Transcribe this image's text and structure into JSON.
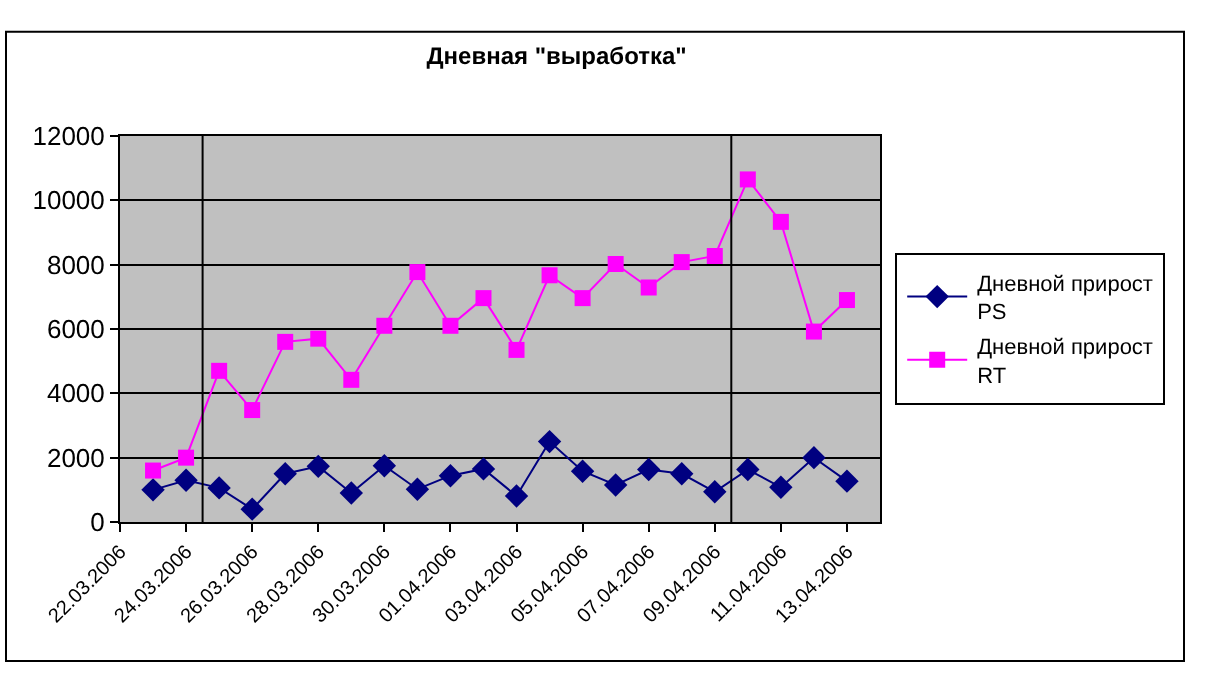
{
  "chart_data": {
    "type": "line",
    "title": "Дневная \"выработка\"",
    "x": [
      "2006-03-23",
      "2006-03-24",
      "2006-03-25",
      "2006-03-26",
      "2006-03-27",
      "2006-03-28",
      "2006-03-29",
      "2006-03-30",
      "2006-03-31",
      "2006-04-01",
      "2006-04-02",
      "2006-04-03",
      "2006-04-04",
      "2006-04-05",
      "2006-04-06",
      "2006-04-07",
      "2006-04-08",
      "2006-04-09",
      "2006-04-10",
      "2006-04-11",
      "2006-04-12",
      "2006-04-13"
    ],
    "series": [
      {
        "name": "Дневной прирост PS",
        "color": "#000080",
        "marker": "diamond",
        "values": [
          1000,
          1300,
          1060,
          400,
          1500,
          1730,
          900,
          1750,
          1020,
          1440,
          1650,
          810,
          2500,
          1580,
          1150,
          1630,
          1500,
          940,
          1630,
          1080,
          2000,
          1270
        ]
      },
      {
        "name": "Дневной прирост RT",
        "color": "#ff00ff",
        "marker": "square",
        "values": [
          1600,
          2000,
          4700,
          3480,
          5600,
          5700,
          4420,
          6100,
          7770,
          6100,
          6960,
          5350,
          7670,
          6960,
          8020,
          7290,
          8080,
          8270,
          10650,
          9330,
          5920,
          6900
        ]
      }
    ],
    "xlim": [
      "2006-03-22",
      "2006-04-14"
    ],
    "xticks": [
      {
        "value": "2006-03-22",
        "label": "22.03.2006"
      },
      {
        "value": "2006-03-24",
        "label": "24.03.2006"
      },
      {
        "value": "2006-03-26",
        "label": "26.03.2006"
      },
      {
        "value": "2006-03-28",
        "label": "28.03.2006"
      },
      {
        "value": "2006-03-30",
        "label": "30.03.2006"
      },
      {
        "value": "2006-04-01",
        "label": "01.04.2006"
      },
      {
        "value": "2006-04-03",
        "label": "03.04.2006"
      },
      {
        "value": "2006-04-05",
        "label": "05.04.2006"
      },
      {
        "value": "2006-04-07",
        "label": "07.04.2006"
      },
      {
        "value": "2006-04-09",
        "label": "09.04.2006"
      },
      {
        "value": "2006-04-11",
        "label": "11.04.2006"
      },
      {
        "value": "2006-04-13",
        "label": "13.04.2006"
      }
    ],
    "ylim": [
      0,
      12000
    ],
    "yticks": [
      0,
      2000,
      4000,
      6000,
      8000,
      10000,
      12000
    ],
    "ref_lines": [
      {
        "axis": "x",
        "value": "2006-03-24T12:00",
        "label": null,
        "color": "#000000"
      },
      {
        "axis": "x",
        "value": "2006-04-09T12:00",
        "label": null,
        "color": "#000000"
      }
    ],
    "grid": "y",
    "legend": "right",
    "line_style": "solid"
  }
}
